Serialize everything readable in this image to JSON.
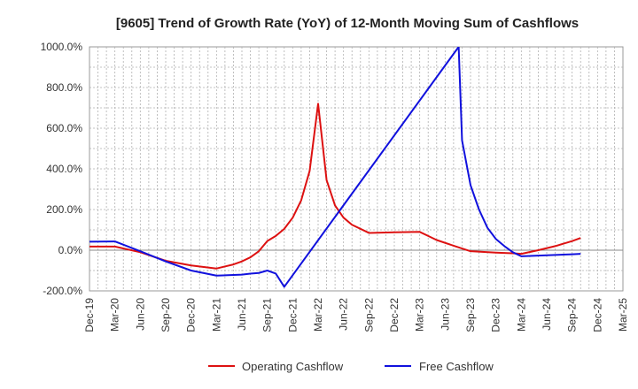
{
  "chart_data": {
    "type": "line",
    "title": "[9605]  Trend of Growth Rate (YoY) of 12-Month Moving Sum of Cashflows",
    "xlabel": "",
    "ylabel": "",
    "ylim": [
      -200,
      1000
    ],
    "y_ticks": [
      1000,
      800,
      600,
      400,
      200,
      0,
      -200
    ],
    "y_tick_labels": [
      "1000.0%",
      "800.0%",
      "600.0%",
      "400.0%",
      "200.0%",
      "0.0%",
      "-200.0%"
    ],
    "x_tick_labels": [
      "Dec-19",
      "Mar-20",
      "Jun-20",
      "Sep-20",
      "Dec-20",
      "Mar-21",
      "Jun-21",
      "Sep-21",
      "Dec-21",
      "Mar-22",
      "Jun-22",
      "Sep-22",
      "Dec-22",
      "Mar-23",
      "Jun-23",
      "Sep-23",
      "Dec-23",
      "Mar-24",
      "Jun-24",
      "Sep-24",
      "Dec-24",
      "Mar-25"
    ],
    "x_range_months": [
      0,
      63
    ],
    "grid": true,
    "legend_position": "bottom",
    "series": [
      {
        "name": "Operating Cashflow",
        "color": "#dd1111",
        "points": [
          [
            0,
            18
          ],
          [
            3,
            18
          ],
          [
            6,
            -10
          ],
          [
            9,
            -52
          ],
          [
            12,
            -75
          ],
          [
            15,
            -90
          ],
          [
            17,
            -70
          ],
          [
            18,
            -55
          ],
          [
            19,
            -35
          ],
          [
            20,
            -5
          ],
          [
            21,
            45
          ],
          [
            22,
            70
          ],
          [
            23,
            105
          ],
          [
            24,
            160
          ],
          [
            25,
            245
          ],
          [
            26,
            390
          ],
          [
            27,
            720
          ],
          [
            28,
            345
          ],
          [
            29,
            220
          ],
          [
            30,
            160
          ],
          [
            31,
            125
          ],
          [
            33,
            85
          ],
          [
            36,
            88
          ],
          [
            39,
            90
          ],
          [
            40,
            70
          ],
          [
            41,
            50
          ],
          [
            43,
            22
          ],
          [
            45,
            -5
          ],
          [
            48,
            -12
          ],
          [
            50,
            -15
          ],
          [
            51,
            -18
          ],
          [
            53,
            0
          ],
          [
            55,
            20
          ],
          [
            57,
            45
          ],
          [
            58,
            60
          ]
        ]
      },
      {
        "name": "Free Cashflow",
        "color": "#1111dd",
        "points": [
          [
            0,
            42
          ],
          [
            3,
            43
          ],
          [
            6,
            -5
          ],
          [
            9,
            -55
          ],
          [
            12,
            -100
          ],
          [
            15,
            -125
          ],
          [
            18,
            -120
          ],
          [
            19,
            -115
          ],
          [
            20,
            -112
          ],
          [
            21,
            -100
          ],
          [
            22,
            -115
          ],
          [
            23,
            -180
          ],
          [
            43.6,
            1000
          ],
          [
            44,
            540
          ],
          [
            45,
            320
          ],
          [
            46,
            200
          ],
          [
            47,
            110
          ],
          [
            48,
            55
          ],
          [
            49,
            20
          ],
          [
            50,
            -10
          ],
          [
            51,
            -30
          ],
          [
            54,
            -25
          ],
          [
            57,
            -20
          ],
          [
            58,
            -18
          ]
        ]
      }
    ]
  }
}
